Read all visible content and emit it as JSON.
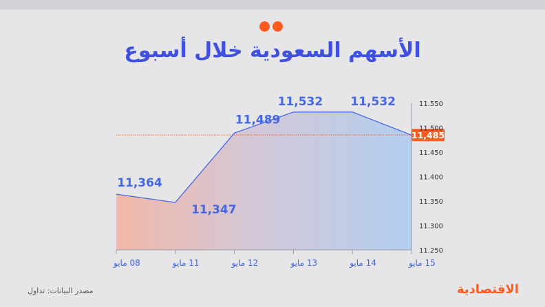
{
  "title": "الأسهم السعودية خلال أسبوع",
  "source": "مصدر البيانات: تداول",
  "brand": "الاقتصادية",
  "colors": {
    "accent": "#ff5a1f",
    "line": "#4467e6",
    "title": "#3f4fe0"
  },
  "chart_data": {
    "type": "area",
    "categories": [
      "08 مايو",
      "11 مايو",
      "12 مايو",
      "13 مايو",
      "14 مايو",
      "15 مايو"
    ],
    "values": [
      11364,
      11347,
      11489,
      11532,
      11532,
      11485
    ],
    "value_labels": [
      "11,364",
      "11,347",
      "11,489",
      "11,532",
      "11,532",
      ""
    ],
    "yticks": [
      11250,
      11300,
      11350,
      11400,
      11450,
      11500,
      11550
    ],
    "ytick_labels": [
      "11.250",
      "11.300",
      "11.350",
      "11.400",
      "11.450",
      "11.500",
      "11.550"
    ],
    "ylim": [
      11250,
      11550
    ],
    "reference_value": 11485,
    "reference_label": "11,485",
    "axis_side": "right",
    "grid": false
  }
}
